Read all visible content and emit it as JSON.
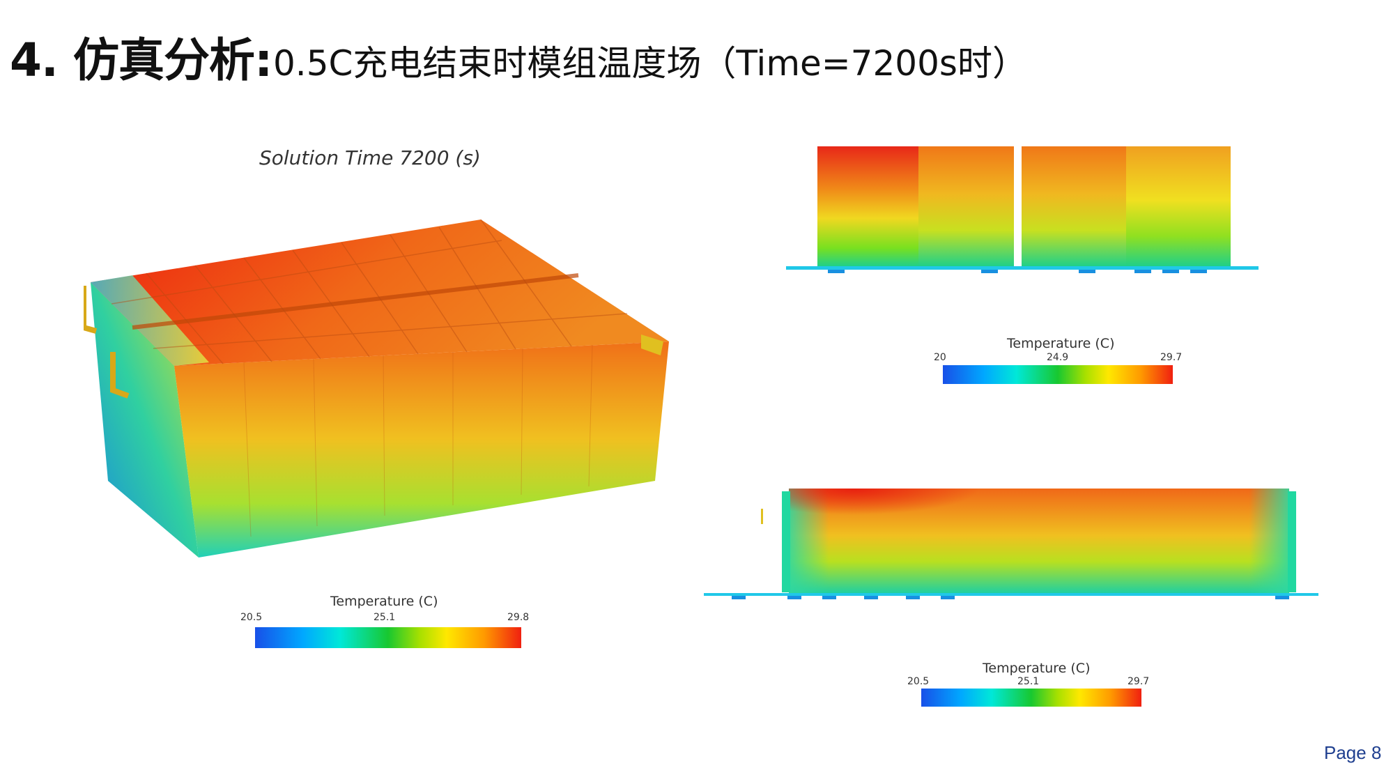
{
  "slide": {
    "section_label": "4. 仿真分析:",
    "subtitle": "0.5C充电结束时模组温度场（Time=7200s时）",
    "solution_time": "Solution Time 7200 (s)",
    "page": "Page 8"
  },
  "legends": [
    {
      "title": "Temperature (C)",
      "min": "20.5",
      "mid": "25.1",
      "max": "29.8"
    },
    {
      "title": "Temperature (C)",
      "min": "20",
      "mid": "24.9",
      "max": "29.7"
    },
    {
      "title": "Temperature (C)",
      "min": "20.5",
      "mid": "25.1",
      "max": "29.7"
    }
  ],
  "colors": {
    "hot": "#e82010",
    "warm": "#f07818",
    "mid": "#ffe000",
    "cool": "#20d060",
    "cold": "#10b8e8",
    "page_text": "#1f3f8f"
  }
}
